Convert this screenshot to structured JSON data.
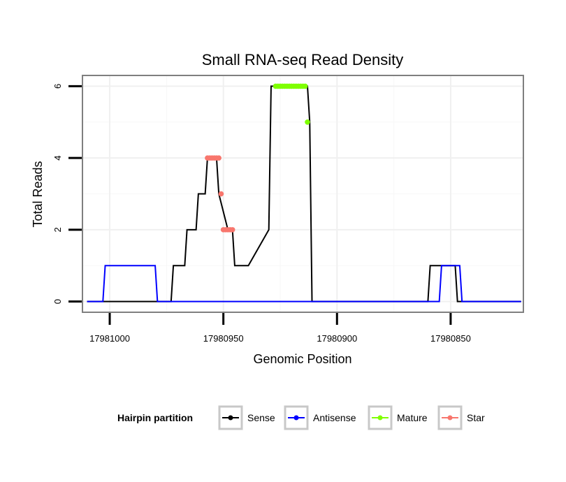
{
  "chart_data": {
    "type": "line",
    "title": "Small RNA-seq Read Density",
    "xlabel": "Genomic Position",
    "ylabel": "Total Reads",
    "xlim": [
      17981012,
      17980818
    ],
    "x_reversed": true,
    "ylim": [
      -0.3,
      6.3
    ],
    "x_ticks": [
      17981000,
      17980950,
      17980900,
      17980850
    ],
    "x_tick_labels": [
      "17981000",
      "17980950",
      "17980900",
      "17980850"
    ],
    "y_ticks": [
      0,
      2,
      4,
      6
    ],
    "y_tick_labels": [
      "0",
      "2",
      "4",
      "6"
    ],
    "grid": true,
    "legend": {
      "title": "Hairpin partition",
      "position": "bottom",
      "entries": [
        "Sense",
        "Antisense",
        "Mature",
        "Star"
      ]
    },
    "series": [
      {
        "name": "Sense",
        "color": "#000000",
        "style": "line",
        "x": [
          17981010,
          17980973,
          17980972,
          17980967,
          17980966,
          17980962,
          17980961,
          17980958,
          17980957,
          17980953,
          17980952,
          17980948,
          17980947,
          17980946,
          17980945,
          17980940,
          17980939,
          17980930,
          17980929,
          17980928,
          17980927,
          17980914,
          17980913,
          17980912,
          17980911,
          17980860,
          17980859,
          17980848,
          17980847,
          17980819
        ],
        "y": [
          0,
          0,
          1,
          1,
          2,
          2,
          3,
          3,
          4,
          4,
          3,
          2,
          2,
          2,
          1,
          1,
          1,
          2,
          6,
          6,
          6,
          6,
          6,
          5,
          0,
          0,
          1,
          1,
          0,
          0
        ]
      },
      {
        "name": "Antisense",
        "color": "#0000ff",
        "style": "line",
        "x": [
          17981010,
          17981003,
          17981002,
          17980980,
          17980979,
          17980860,
          17980855,
          17980854,
          17980846,
          17980845,
          17980819
        ],
        "y": [
          0,
          0,
          1,
          1,
          0,
          0,
          0,
          1,
          1,
          0,
          0
        ]
      },
      {
        "name": "Mature",
        "color": "#7fff00",
        "style": "points",
        "x": [
          17980927,
          17980926,
          17980925,
          17980924,
          17980923,
          17980922,
          17980921,
          17980920,
          17980919,
          17980918,
          17980917,
          17980916,
          17980915,
          17980914,
          17980913
        ],
        "y": [
          6,
          6,
          6,
          6,
          6,
          6,
          6,
          6,
          6,
          6,
          6,
          6,
          6,
          6,
          5
        ]
      },
      {
        "name": "Star",
        "color": "#f8766d",
        "style": "points",
        "x": [
          17980957,
          17980956,
          17980955,
          17980954,
          17980953,
          17980952,
          17980951,
          17980950,
          17980949,
          17980948,
          17980947,
          17980946
        ],
        "y": [
          4,
          4,
          4,
          4,
          4,
          4,
          3,
          2,
          2,
          2,
          2,
          2
        ]
      }
    ]
  }
}
